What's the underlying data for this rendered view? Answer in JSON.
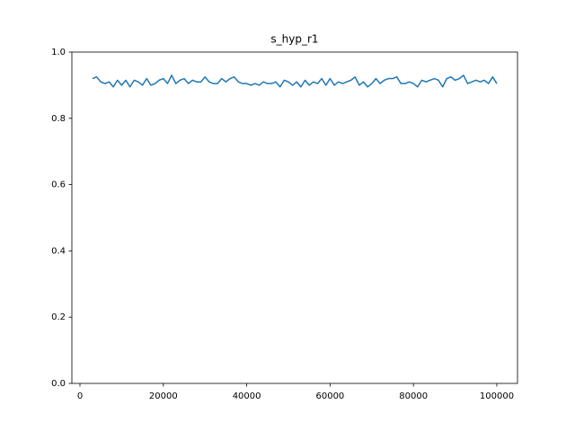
{
  "chart_data": {
    "type": "line",
    "title": "s_hyp_r1",
    "x": [
      3000,
      4000,
      5000,
      6000,
      7000,
      8000,
      9000,
      10000,
      11000,
      12000,
      13000,
      14000,
      15000,
      16000,
      17000,
      18000,
      19000,
      20000,
      21000,
      22000,
      23000,
      24000,
      25000,
      26000,
      27000,
      28000,
      29000,
      30000,
      31000,
      32000,
      33000,
      34000,
      35000,
      36000,
      37000,
      38000,
      39000,
      40000,
      41000,
      42000,
      43000,
      44000,
      45000,
      46000,
      47000,
      48000,
      49000,
      50000,
      51000,
      52000,
      53000,
      54000,
      55000,
      56000,
      57000,
      58000,
      59000,
      60000,
      61000,
      62000,
      63000,
      64000,
      65000,
      66000,
      67000,
      68000,
      69000,
      70000,
      71000,
      72000,
      73000,
      74000,
      75000,
      76000,
      77000,
      78000,
      79000,
      80000,
      81000,
      82000,
      83000,
      84000,
      85000,
      86000,
      87000,
      88000,
      89000,
      90000,
      91000,
      92000,
      93000,
      94000,
      95000,
      96000,
      97000,
      98000,
      99000,
      100000
    ],
    "series": [
      {
        "color": "#1f77b4",
        "values": [
          0.92,
          0.925,
          0.91,
          0.905,
          0.91,
          0.895,
          0.915,
          0.9,
          0.915,
          0.895,
          0.915,
          0.91,
          0.9,
          0.92,
          0.9,
          0.905,
          0.915,
          0.92,
          0.905,
          0.93,
          0.905,
          0.915,
          0.92,
          0.905,
          0.915,
          0.91,
          0.91,
          0.925,
          0.91,
          0.905,
          0.905,
          0.92,
          0.91,
          0.92,
          0.925,
          0.91,
          0.905,
          0.905,
          0.9,
          0.905,
          0.9,
          0.91,
          0.905,
          0.905,
          0.91,
          0.895,
          0.915,
          0.91,
          0.9,
          0.91,
          0.895,
          0.915,
          0.9,
          0.91,
          0.905,
          0.92,
          0.9,
          0.92,
          0.9,
          0.91,
          0.905,
          0.91,
          0.915,
          0.925,
          0.9,
          0.91,
          0.895,
          0.905,
          0.92,
          0.905,
          0.915,
          0.92,
          0.92,
          0.925,
          0.905,
          0.905,
          0.91,
          0.905,
          0.895,
          0.915,
          0.91,
          0.915,
          0.92,
          0.915,
          0.895,
          0.92,
          0.925,
          0.915,
          0.92,
          0.93,
          0.905,
          0.91,
          0.915,
          0.91,
          0.915,
          0.905,
          0.925,
          0.905
        ]
      }
    ],
    "xlim": [
      -1940,
      104960
    ],
    "ylim": [
      0,
      1
    ],
    "xticks": [
      0,
      20000,
      40000,
      60000,
      80000,
      100000
    ],
    "yticks": [
      {
        "value": 0,
        "label": "0.0"
      },
      0.2,
      0.4,
      0.6,
      0.8,
      {
        "value": 1,
        "label": "1.0"
      }
    ]
  }
}
